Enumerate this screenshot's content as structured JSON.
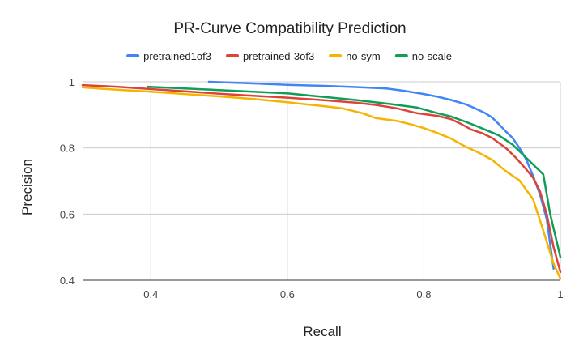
{
  "chart_data": {
    "type": "line",
    "title": "PR-Curve Compatibility Prediction",
    "xlabel": "Recall",
    "ylabel": "Precision",
    "xlim": [
      0.3,
      1.0
    ],
    "ylim": [
      0.4,
      1.0
    ],
    "x_ticks": [
      0.4,
      0.6,
      0.8,
      1.0
    ],
    "x_tick_labels": [
      "0.4",
      "0.6",
      "0.8",
      "1"
    ],
    "y_ticks": [
      0.4,
      0.6,
      0.8,
      1.0
    ],
    "y_tick_labels": [
      "0.4",
      "0.6",
      "0.8",
      "1"
    ],
    "grid": true,
    "legend_position": "top",
    "series": [
      {
        "name": "pretrained1of3",
        "color": "#4285F4",
        "points": [
          [
            0.485,
            1.0
          ],
          [
            0.55,
            0.995
          ],
          [
            0.6,
            0.991
          ],
          [
            0.65,
            0.988
          ],
          [
            0.7,
            0.984
          ],
          [
            0.745,
            0.98
          ],
          [
            0.77,
            0.973
          ],
          [
            0.8,
            0.963
          ],
          [
            0.82,
            0.955
          ],
          [
            0.84,
            0.945
          ],
          [
            0.86,
            0.933
          ],
          [
            0.875,
            0.92
          ],
          [
            0.89,
            0.905
          ],
          [
            0.9,
            0.892
          ],
          [
            0.91,
            0.872
          ],
          [
            0.92,
            0.85
          ],
          [
            0.93,
            0.83
          ],
          [
            0.94,
            0.8
          ],
          [
            0.95,
            0.765
          ],
          [
            0.96,
            0.715
          ],
          [
            0.97,
            0.66
          ],
          [
            0.98,
            0.585
          ],
          [
            0.99,
            0.435
          ]
        ]
      },
      {
        "name": "pretrained-3of3",
        "color": "#DB4437",
        "points": [
          [
            0.3,
            0.99
          ],
          [
            0.35,
            0.985
          ],
          [
            0.4,
            0.978
          ],
          [
            0.45,
            0.971
          ],
          [
            0.5,
            0.964
          ],
          [
            0.55,
            0.958
          ],
          [
            0.6,
            0.952
          ],
          [
            0.65,
            0.945
          ],
          [
            0.7,
            0.937
          ],
          [
            0.73,
            0.93
          ],
          [
            0.76,
            0.92
          ],
          [
            0.79,
            0.905
          ],
          [
            0.82,
            0.897
          ],
          [
            0.84,
            0.887
          ],
          [
            0.855,
            0.872
          ],
          [
            0.87,
            0.855
          ],
          [
            0.885,
            0.845
          ],
          [
            0.9,
            0.83
          ],
          [
            0.92,
            0.8
          ],
          [
            0.935,
            0.77
          ],
          [
            0.95,
            0.735
          ],
          [
            0.96,
            0.71
          ],
          [
            0.97,
            0.67
          ],
          [
            0.98,
            0.6
          ],
          [
            0.99,
            0.5
          ],
          [
            1.0,
            0.425
          ]
        ]
      },
      {
        "name": "no-sym",
        "color": "#F4B400",
        "points": [
          [
            0.3,
            0.983
          ],
          [
            0.35,
            0.976
          ],
          [
            0.4,
            0.97
          ],
          [
            0.45,
            0.963
          ],
          [
            0.5,
            0.956
          ],
          [
            0.55,
            0.948
          ],
          [
            0.6,
            0.938
          ],
          [
            0.65,
            0.927
          ],
          [
            0.68,
            0.92
          ],
          [
            0.71,
            0.905
          ],
          [
            0.73,
            0.89
          ],
          [
            0.76,
            0.882
          ],
          [
            0.78,
            0.872
          ],
          [
            0.8,
            0.86
          ],
          [
            0.82,
            0.845
          ],
          [
            0.84,
            0.828
          ],
          [
            0.86,
            0.805
          ],
          [
            0.88,
            0.786
          ],
          [
            0.9,
            0.764
          ],
          [
            0.92,
            0.73
          ],
          [
            0.94,
            0.702
          ],
          [
            0.96,
            0.645
          ],
          [
            0.975,
            0.55
          ],
          [
            0.99,
            0.45
          ],
          [
            1.0,
            0.405
          ]
        ]
      },
      {
        "name": "no-scale",
        "color": "#0F9D58",
        "points": [
          [
            0.395,
            0.985
          ],
          [
            0.45,
            0.98
          ],
          [
            0.5,
            0.975
          ],
          [
            0.55,
            0.97
          ],
          [
            0.6,
            0.965
          ],
          [
            0.65,
            0.955
          ],
          [
            0.7,
            0.945
          ],
          [
            0.75,
            0.933
          ],
          [
            0.79,
            0.922
          ],
          [
            0.82,
            0.905
          ],
          [
            0.84,
            0.895
          ],
          [
            0.86,
            0.88
          ],
          [
            0.875,
            0.868
          ],
          [
            0.89,
            0.855
          ],
          [
            0.91,
            0.838
          ],
          [
            0.93,
            0.81
          ],
          [
            0.95,
            0.77
          ],
          [
            0.96,
            0.75
          ],
          [
            0.975,
            0.72
          ],
          [
            0.985,
            0.6
          ],
          [
            1.0,
            0.47
          ]
        ]
      }
    ]
  }
}
